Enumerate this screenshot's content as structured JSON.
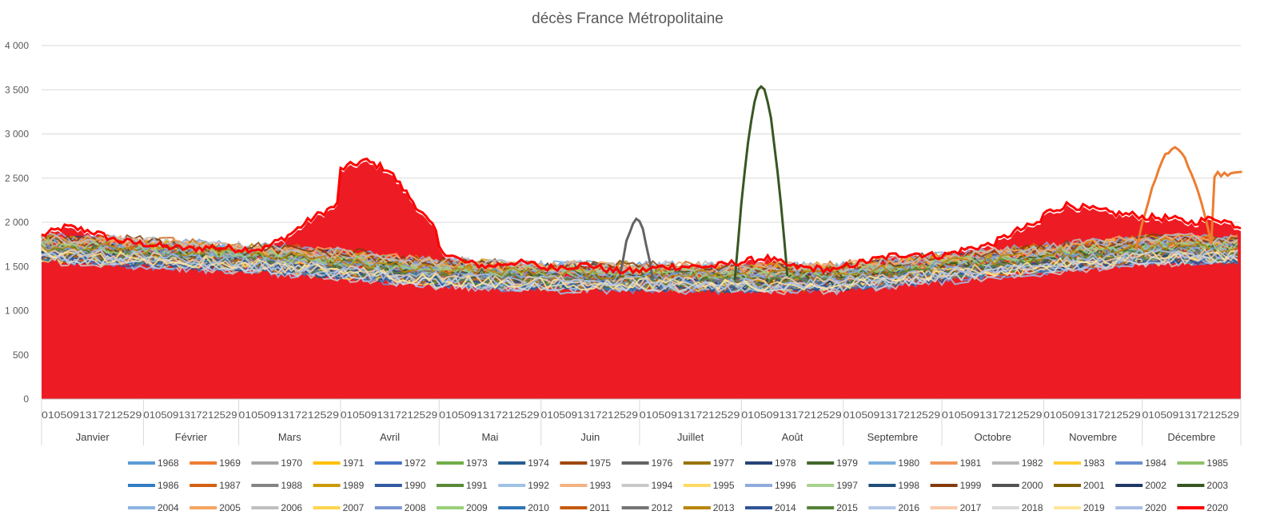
{
  "chart_data": {
    "type": "line",
    "title": "décès  France Métropolitaine",
    "xlabel": "",
    "ylabel": "",
    "ylim": [
      0,
      4000
    ],
    "yticks": [
      0,
      500,
      1000,
      1500,
      2000,
      2500,
      3000,
      3500,
      4000
    ],
    "ytick_labels": [
      "0",
      "500",
      "1 000",
      "1 500",
      "2 000",
      "2 500",
      "3 000",
      "3 500",
      "4 000"
    ],
    "grid": true,
    "legend_position": "bottom",
    "months": [
      {
        "name": "Janvier",
        "days": 31
      },
      {
        "name": "Février",
        "days": 29
      },
      {
        "name": "Mars",
        "days": 31
      },
      {
        "name": "Avril",
        "days": 30
      },
      {
        "name": "Mai",
        "days": 31
      },
      {
        "name": "Juin",
        "days": 30
      },
      {
        "name": "Juillet",
        "days": 31
      },
      {
        "name": "Août",
        "days": 31
      },
      {
        "name": "Septembre",
        "days": 30
      },
      {
        "name": "Octobre",
        "days": 31
      },
      {
        "name": "Novembre",
        "days": 30
      },
      {
        "name": "Décembre",
        "days": 31
      }
    ],
    "x_tick_labels": [
      "01050913172125",
      "29",
      "0206101418222630",
      "01050913172125",
      "29",
      "0206101418222630"
    ],
    "legend": [
      {
        "name": "1968",
        "color": "#5b9bd5"
      },
      {
        "name": "1969",
        "color": "#ed7d31"
      },
      {
        "name": "1970",
        "color": "#a5a5a5"
      },
      {
        "name": "1971",
        "color": "#ffc000"
      },
      {
        "name": "1972",
        "color": "#4472c4"
      },
      {
        "name": "1973",
        "color": "#70ad47"
      },
      {
        "name": "1974",
        "color": "#255e91"
      },
      {
        "name": "1975",
        "color": "#9e480e"
      },
      {
        "name": "1976",
        "color": "#636363"
      },
      {
        "name": "1977",
        "color": "#997300"
      },
      {
        "name": "1978",
        "color": "#264478"
      },
      {
        "name": "1979",
        "color": "#43682b"
      },
      {
        "name": "1980",
        "color": "#7cafdd"
      },
      {
        "name": "1981",
        "color": "#f1975a"
      },
      {
        "name": "1982",
        "color": "#b7b7b7"
      },
      {
        "name": "1983",
        "color": "#ffcd33"
      },
      {
        "name": "1984",
        "color": "#698ed0"
      },
      {
        "name": "1985",
        "color": "#8cc168"
      },
      {
        "name": "1986",
        "color": "#327dc2"
      },
      {
        "name": "1987",
        "color": "#d26012"
      },
      {
        "name": "1988",
        "color": "#848484"
      },
      {
        "name": "1989",
        "color": "#cc9a00"
      },
      {
        "name": "1990",
        "color": "#335aa1"
      },
      {
        "name": "1991",
        "color": "#5a8a39"
      },
      {
        "name": "1992",
        "color": "#9dc3e6"
      },
      {
        "name": "1993",
        "color": "#f4b183"
      },
      {
        "name": "1994",
        "color": "#c9c9c9"
      },
      {
        "name": "1995",
        "color": "#ffd966"
      },
      {
        "name": "1996",
        "color": "#8faadc"
      },
      {
        "name": "1997",
        "color": "#a9d18e"
      },
      {
        "name": "1998",
        "color": "#1f4e79"
      },
      {
        "name": "1999",
        "color": "#843c0c"
      },
      {
        "name": "2000",
        "color": "#525252"
      },
      {
        "name": "2001",
        "color": "#7f6000"
      },
      {
        "name": "2002",
        "color": "#203864"
      },
      {
        "name": "2003",
        "color": "#385723"
      },
      {
        "name": "2004",
        "color": "#8db4e2"
      },
      {
        "name": "2005",
        "color": "#f4a460"
      },
      {
        "name": "2006",
        "color": "#bfbfbf"
      },
      {
        "name": "2007",
        "color": "#ffd54f"
      },
      {
        "name": "2008",
        "color": "#7a96d4"
      },
      {
        "name": "2009",
        "color": "#9bcf7a"
      },
      {
        "name": "2010",
        "color": "#2e75b6"
      },
      {
        "name": "2011",
        "color": "#c55a11"
      },
      {
        "name": "2012",
        "color": "#757575"
      },
      {
        "name": "2013",
        "color": "#b8860b"
      },
      {
        "name": "2014",
        "color": "#2f5597"
      },
      {
        "name": "2015",
        "color": "#548235"
      },
      {
        "name": "2016",
        "color": "#b4c7e7"
      },
      {
        "name": "2017",
        "color": "#f8cbad"
      },
      {
        "name": "2018",
        "color": "#d9d9d9"
      },
      {
        "name": "2019",
        "color": "#ffe699"
      },
      {
        "name": "2020",
        "color": "#a9bee6"
      },
      {
        "name": "2020",
        "color": "#ff0000"
      }
    ],
    "highlight_series": {
      "name": "2020",
      "color": "#ff0000",
      "fill": "#ed1c24",
      "values_by_month": {
        "Janvier": [
          1850,
          1950,
          1900,
          1800,
          1760
        ],
        "Février": [
          1760,
          1720,
          1700,
          1720,
          1700
        ],
        "Mars": [
          1700,
          1700,
          1850,
          2050,
          2200
        ],
        "Avril": [
          2600,
          2700,
          2600,
          2250,
          1900
        ],
        "Mai": [
          1700,
          1550,
          1500,
          1550,
          1520
        ],
        "Juin": [
          1480,
          1500,
          1520,
          1450,
          1450
        ],
        "Juillet": [
          1450,
          1500,
          1500,
          1500,
          1550
        ],
        "Août": [
          1550,
          1600,
          1500,
          1480,
          1450
        ],
        "Septembre": [
          1500,
          1560,
          1620,
          1650,
          1620
        ],
        "Octobre": [
          1620,
          1700,
          1750,
          1900,
          2000
        ],
        "Novembre": [
          2100,
          2200,
          2150,
          2100,
          2080
        ],
        "Décembre": [
          2060,
          2050,
          2000,
          2050,
          1950
        ]
      }
    },
    "notable_peaks": [
      {
        "series": "2003",
        "month": "Août",
        "value": 3540
      },
      {
        "series": "1969",
        "month": "Décembre",
        "value": 2830
      },
      {
        "series": "1976",
        "month": "Juillet",
        "value": 2030
      }
    ],
    "baseline_band": {
      "low": 1300,
      "high": 1900
    }
  }
}
